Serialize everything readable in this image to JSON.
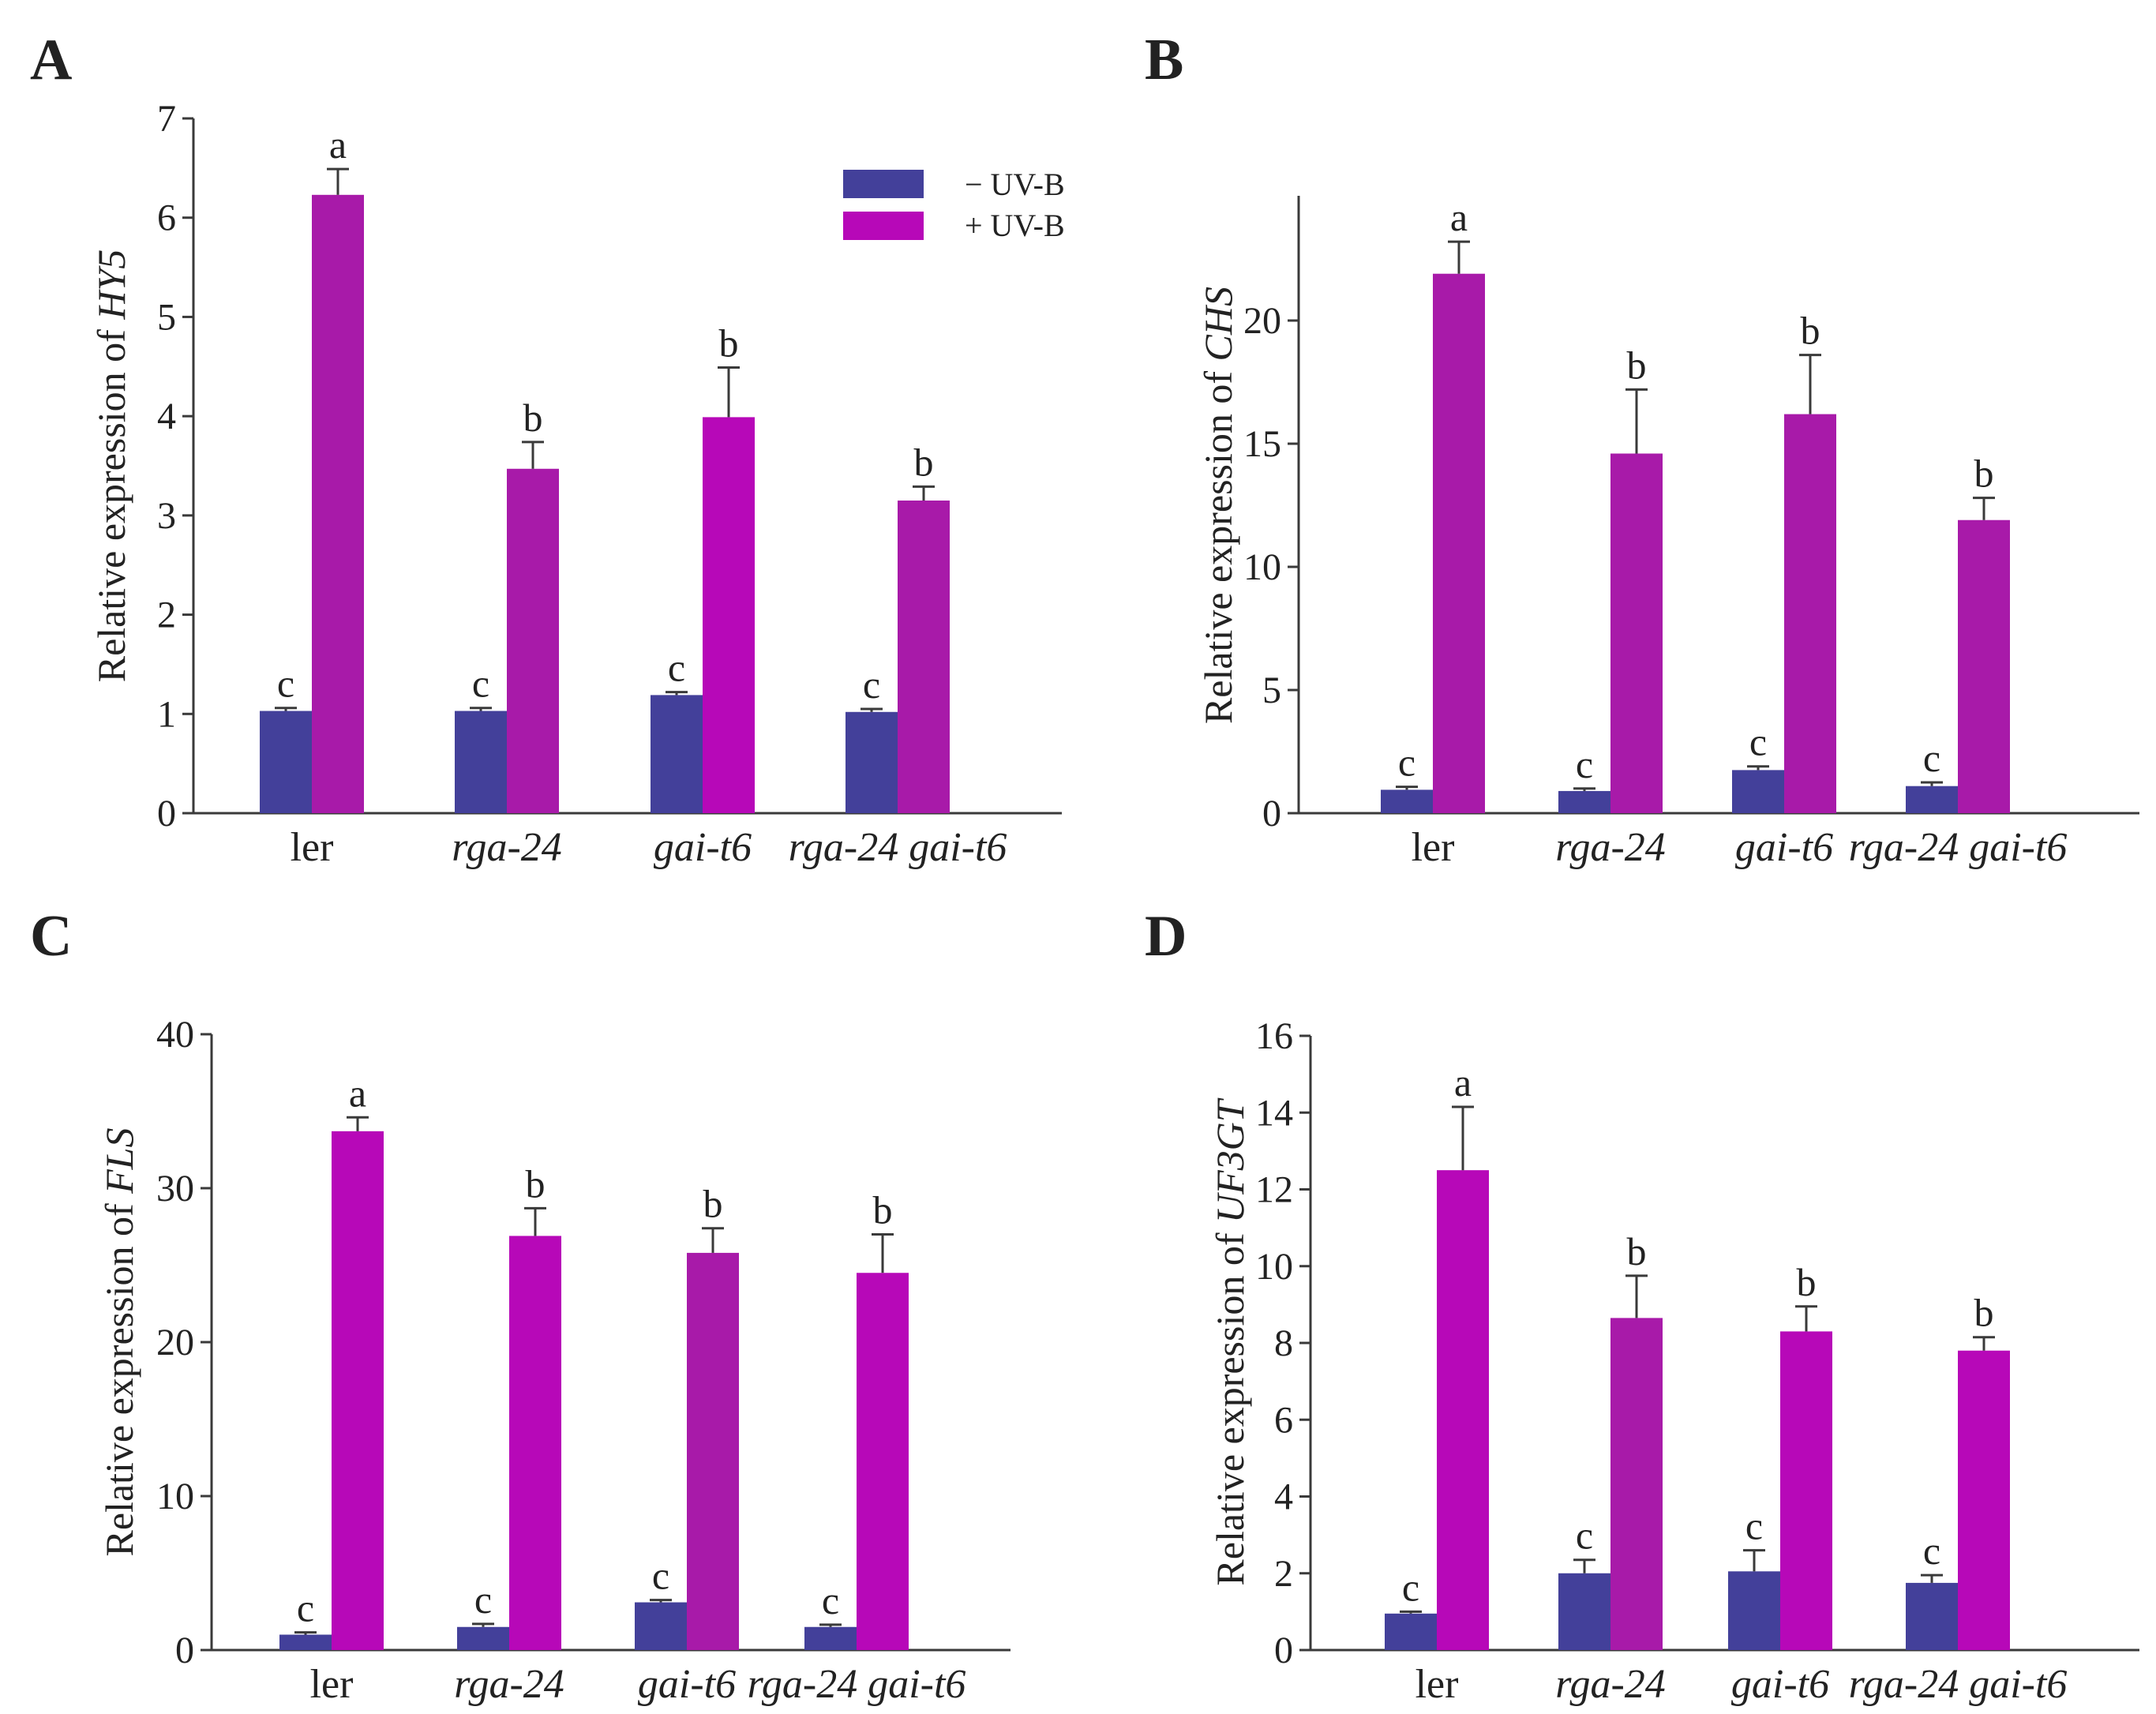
{
  "colors": {
    "minus_uvb": "#43409a",
    "plus_uvb": "#b708b8",
    "plus_uvb_alt": "#a81aa9",
    "axis": "#3a3a3a"
  },
  "legend": {
    "minus": "− UV-B",
    "plus": "+ UV-B"
  },
  "chart_data": [
    {
      "panel": "A",
      "type": "bar",
      "ylabel_prefix": "Relative expression of ",
      "ylabel_gene": "HY5",
      "categories": [
        "ler",
        "rga-24",
        "gai-t6",
        "rga-24 gai-t6"
      ],
      "category_italic": [
        false,
        true,
        true,
        true
      ],
      "ylim": [
        0,
        7
      ],
      "yticks": [
        0,
        1,
        2,
        3,
        4,
        5,
        6,
        7
      ],
      "series": [
        {
          "name": "− UV-B",
          "values": [
            1.03,
            1.03,
            1.19,
            1.02
          ],
          "errors": [
            0.03,
            0.03,
            0.03,
            0.03
          ],
          "letters": [
            "c",
            "c",
            "c",
            "c"
          ]
        },
        {
          "name": "+ UV-B",
          "values": [
            6.23,
            3.47,
            3.99,
            3.15
          ],
          "errors": [
            0.26,
            0.27,
            0.5,
            0.14
          ],
          "letters": [
            "a",
            "b",
            "b",
            "b"
          ]
        }
      ]
    },
    {
      "panel": "B",
      "type": "bar",
      "ylabel_prefix": "Relative expression of ",
      "ylabel_gene": "CHS",
      "categories": [
        "ler",
        "rga-24",
        "gai-t6",
        "rga-24 gai-t6"
      ],
      "category_italic": [
        false,
        true,
        true,
        true
      ],
      "ylim": [
        0,
        25
      ],
      "yticks": [
        0,
        5,
        10,
        15,
        20
      ],
      "series": [
        {
          "name": "− UV-B",
          "values": [
            0.95,
            0.9,
            1.75,
            1.1
          ],
          "errors": [
            0.12,
            0.1,
            0.15,
            0.15
          ],
          "letters": [
            "c",
            "c",
            "c",
            "c"
          ]
        },
        {
          "name": "+ UV-B",
          "values": [
            21.9,
            14.6,
            16.2,
            11.9
          ],
          "errors": [
            1.3,
            2.6,
            2.4,
            0.9
          ],
          "letters": [
            "a",
            "b",
            "b",
            "b"
          ]
        }
      ]
    },
    {
      "panel": "C",
      "type": "bar",
      "ylabel_prefix": "Relative expression of ",
      "ylabel_gene": "FLS",
      "categories": [
        "ler",
        "rga-24",
        "gai-t6",
        "rga-24 gai-t6"
      ],
      "category_italic": [
        false,
        true,
        true,
        true
      ],
      "ylim": [
        0,
        40
      ],
      "yticks": [
        0,
        10,
        20,
        30,
        40
      ],
      "series": [
        {
          "name": "− UV-B",
          "values": [
            1.0,
            1.5,
            3.1,
            1.5
          ],
          "errors": [
            0.15,
            0.2,
            0.15,
            0.15
          ],
          "letters": [
            "c",
            "c",
            "c",
            "c"
          ]
        },
        {
          "name": "+ UV-B",
          "values": [
            33.7,
            26.9,
            25.8,
            24.5
          ],
          "errors": [
            0.9,
            1.8,
            1.6,
            2.5
          ],
          "letters": [
            "a",
            "b",
            "b",
            "b"
          ]
        }
      ]
    },
    {
      "panel": "D",
      "type": "bar",
      "ylabel_prefix": "Relative expression of ",
      "ylabel_gene": "UF3GT",
      "categories": [
        "ler",
        "rga-24",
        "gai-t6",
        "rga-24 gai-t6"
      ],
      "category_italic": [
        false,
        true,
        true,
        true
      ],
      "ylim": [
        0,
        16
      ],
      "yticks": [
        0,
        2,
        4,
        6,
        8,
        10,
        12,
        14,
        16
      ],
      "series": [
        {
          "name": "− UV-B",
          "values": [
            0.95,
            2.0,
            2.05,
            1.75
          ],
          "errors": [
            0.05,
            0.35,
            0.55,
            0.2
          ],
          "letters": [
            "c",
            "c",
            "c",
            "c"
          ]
        },
        {
          "name": "+ UV-B",
          "values": [
            12.5,
            8.65,
            8.3,
            7.8
          ],
          "errors": [
            1.65,
            1.1,
            0.65,
            0.35
          ],
          "letters": [
            "a",
            "b",
            "b",
            "b"
          ]
        }
      ]
    }
  ]
}
